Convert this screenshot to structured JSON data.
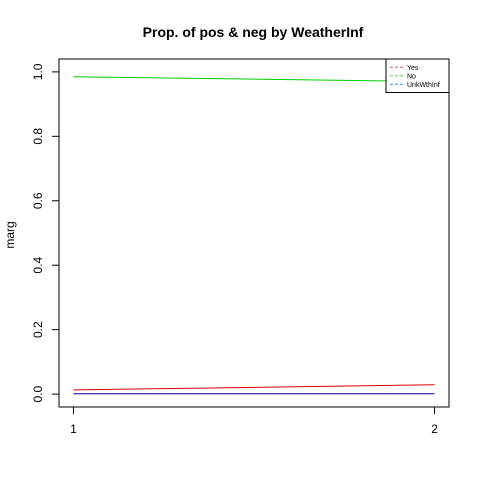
{
  "chart_data": {
    "type": "line",
    "title": "Prop. of pos & neg by WeatherInf",
    "xlabel": "",
    "ylabel": "marg",
    "x": [
      1,
      2
    ],
    "x_ticks": [
      "1",
      "2"
    ],
    "y_ticks": [
      "0.0",
      "0.2",
      "0.4",
      "0.6",
      "0.8",
      "1.0"
    ],
    "y_tick_values": [
      0.0,
      0.2,
      0.4,
      0.6,
      0.8,
      1.0
    ],
    "xlim": [
      0.96,
      2.04
    ],
    "ylim": [
      -0.04,
      1.04
    ],
    "legend_position": "top-right",
    "series": [
      {
        "name": "Yes",
        "color": "#DF536B",
        "line_style": "dashed",
        "values": [
          0.013,
          0.029
        ]
      },
      {
        "name": "No",
        "color": "#61D04F",
        "line_style": "dashed",
        "values": [
          0.985,
          0.97
        ]
      },
      {
        "name": "UnkWthInf",
        "color": "#2297E6",
        "line_style": "dashed",
        "values": [
          0.001,
          0.001
        ]
      }
    ],
    "rendered_series": [
      {
        "color": "#DD0000",
        "values": [
          0.013,
          0.029
        ]
      },
      {
        "color": "#00CC00",
        "values": [
          0.985,
          0.97
        ]
      },
      {
        "color": "#0000AA",
        "values": [
          0.001,
          0.001
        ]
      }
    ]
  }
}
